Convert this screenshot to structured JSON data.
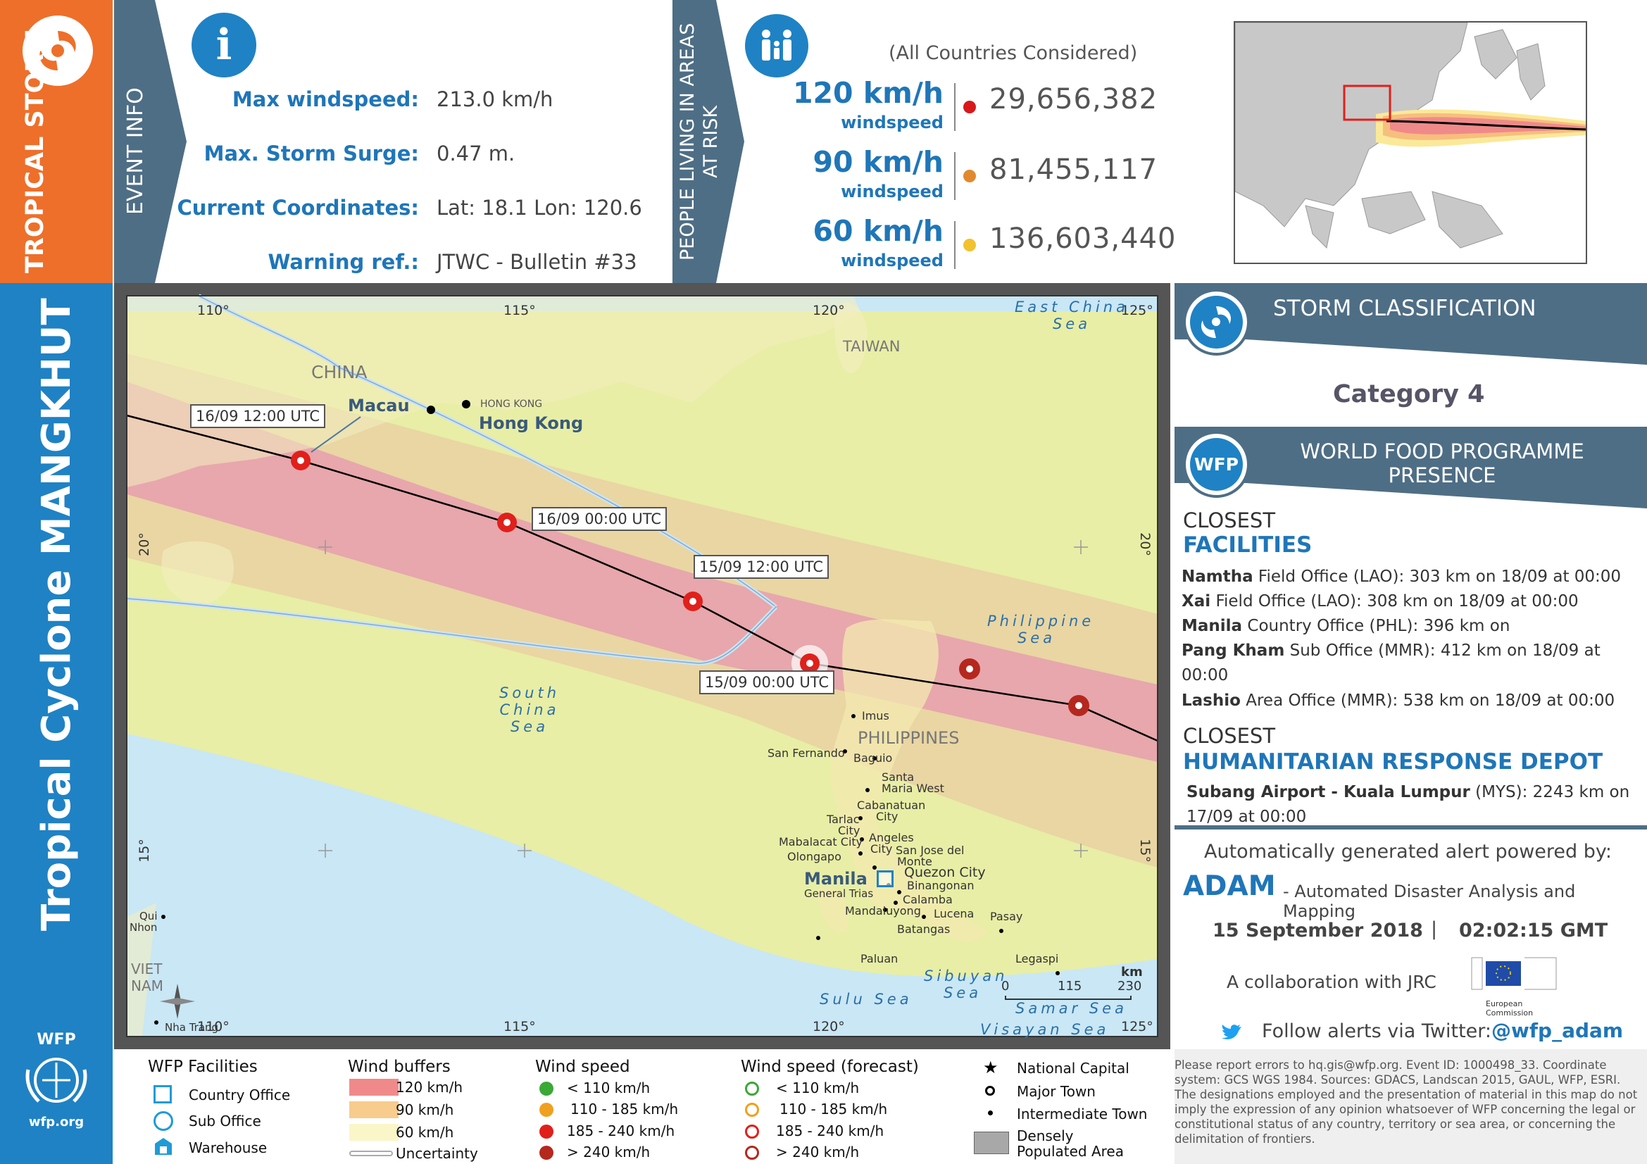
{
  "sidebar": {
    "category": "TROPICAL STORM",
    "title": "Tropical Cyclone MANGKHUT",
    "org_short": "WFP",
    "org_url": "wfp.org"
  },
  "event_info": {
    "tab_label": "EVENT INFO",
    "rows": [
      {
        "label": "Max windspeed:",
        "value": "213.0 km/h"
      },
      {
        "label": "Max. Storm Surge:",
        "value": "0.47 m."
      },
      {
        "label": "Current Coordinates:",
        "value": "Lat: 18.1 Lon: 120.6"
      },
      {
        "label": "Warning ref.:",
        "value": "JTWC - Bulletin #33"
      }
    ]
  },
  "people": {
    "tab_label_line1": "PEOPLE LIVING IN AREAS",
    "tab_label_line2": "AT RISK",
    "note": "(All Countries Considered)",
    "rows": [
      {
        "speed": "120 km/h",
        "unit": "windspeed",
        "count": "29,656,382",
        "color": "#D7191C"
      },
      {
        "speed": "90 km/h",
        "unit": "windspeed",
        "count": "81,455,117",
        "color": "#E08A2E"
      },
      {
        "speed": "60 km/h",
        "unit": "windspeed",
        "count": "136,603,440",
        "color": "#F2C12E"
      }
    ]
  },
  "storm_class": {
    "header": "STORM CLASSIFICATION",
    "value": "Category 4"
  },
  "wfp_presence": {
    "header_line1": "WORLD FOOD PROGRAMME",
    "header_line2": "PRESENCE",
    "badge": "WFP",
    "closest": "CLOSEST",
    "facilities_title": "FACILITIES",
    "facilities": [
      {
        "name": "Namtha",
        "rest": " Field Office (LAO): 303 km on 18/09 at 00:00"
      },
      {
        "name": "Xai",
        "rest": " Field Office (LAO): 308 km on 18/09 at 00:00"
      },
      {
        "name": "Manila",
        "rest": " Country Office (PHL): 396 km on"
      },
      {
        "name": "Pang Kham",
        "rest": " Sub Office (MMR): 412 km on 18/09 at"
      },
      {
        "name": "",
        "rest": "00:00"
      },
      {
        "name": "Lashio",
        "rest": " Area Office (MMR): 538 km on 18/09 at 00:00"
      }
    ],
    "closest2": "CLOSEST",
    "depot_title": "HUMANITARIAN RESPONSE DEPOT",
    "depot_name": "Subang Airport - Kuala Lumpur",
    "depot_rest": " (MYS): 2243 km on",
    "depot_rest2": "17/09 at 00:00"
  },
  "credits": {
    "powered": "Automatically generated alert powered by:",
    "adam": "ADAM",
    "adam_desc": "- Automated Disaster Analysis and Mapping",
    "date": "15 September 2018",
    "sep": "|",
    "time": "02:02:15 GMT",
    "collab": "A collaboration with JRC",
    "ec_label": "European Commission",
    "follow": "Follow alerts via Twitter:",
    "handle": "@wfp_adam"
  },
  "disclaimer": "Please report errors to hq.gis@wfp.org. Event ID: 1000498_33. Coordinate system: GCS WGS 1984. Sources: GDACS, Landscan 2015, GAUL, WFP, ESRI. The designations employed and the presentation of material in this map do not imply the expression of any opinion whatsoever of WFP concerning the legal or constitutional status of any country, territory or sea area, or concerning the delimitation of frontiers.",
  "legend": {
    "facilities": {
      "title": "WFP Facilities",
      "items": [
        "Country Office",
        "Sub Office",
        "Warehouse"
      ]
    },
    "buffers": {
      "title": "Wind buffers",
      "items": [
        "120 km/h",
        "90 km/h",
        "60 km/h",
        "Uncertainty"
      ],
      "colors": [
        "#F08A8A",
        "#F7CC8C",
        "#FBF6C8"
      ]
    },
    "speed": {
      "title": "Wind speed",
      "items": [
        "< 110 km/h",
        "110 - 185 km/h",
        "185 - 240 km/h",
        "> 240 km/h"
      ],
      "colors": [
        "#3AA935",
        "#F0A020",
        "#E0201B",
        "#B5281E"
      ]
    },
    "forecast": {
      "title": "Wind speed (forecast)",
      "items": [
        "< 110 km/h",
        "110 - 185 km/h",
        "185 - 240 km/h",
        "> 240 km/h"
      ]
    },
    "places": {
      "items": [
        "National Capital",
        "Major Town",
        "Intermediate Town",
        "Densely Populated Area"
      ]
    }
  },
  "map": {
    "lon_ticks": [
      "110°",
      "115°",
      "120°",
      "125°"
    ],
    "lat_ticks": [
      "20°",
      "15°"
    ],
    "times": [
      "16/09 12:00 UTC",
      "16/09 00:00 UTC",
      "15/09 12:00 UTC",
      "15/09 00:00 UTC"
    ],
    "countries": [
      "CHINA",
      "TAIWAN",
      "PHILIPPINES",
      "VIET NAM"
    ],
    "seas": [
      "East China Sea",
      "South China Sea",
      "Philippine Sea",
      "Sulu Sea",
      "Sibuyan Sea",
      "Samar Sea",
      "Visayan Sea"
    ],
    "cities_major": [
      "Macau",
      "Hong Kong",
      "Manila"
    ],
    "hk_small": "HONG KONG",
    "towns": [
      "Imus",
      "San Fernando",
      "Baguio",
      "Santa",
      "Maria West",
      "Cabanatuan",
      "City",
      "Tarlac",
      "City",
      "Angeles",
      "City",
      "Mabalacat City",
      "Olongapo",
      "San Jose del",
      "Monte",
      "Quezon City",
      "Binangonan",
      "General Trias",
      "Calamba",
      "Mandaluyong",
      "Lucena",
      "Batangas",
      "Pasay",
      "Paluan",
      "Legaspi",
      "Qui",
      "Nhon",
      "Nha Trang"
    ],
    "scale_unit": "km",
    "scale_vals": [
      "0",
      "115",
      "230"
    ]
  },
  "inset_map": {
    "note": ""
  }
}
